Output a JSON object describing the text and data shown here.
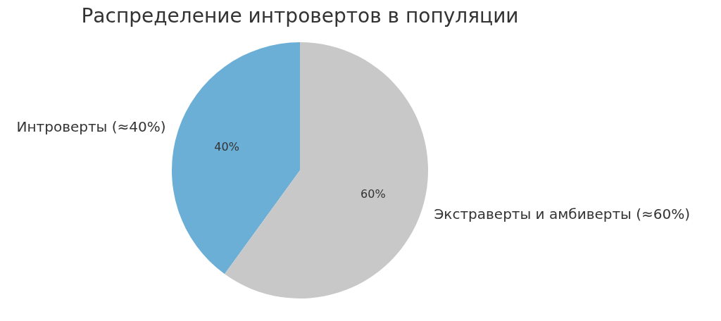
{
  "chart_data": {
    "type": "pie",
    "title": "Распределение интровертов в популяции",
    "categories": [
      "Интроверты (≈40%)",
      "Экстраверты и амбиверты (≈60%)"
    ],
    "values": [
      40,
      60
    ],
    "colors": [
      "#6baed6",
      "#c8c8c8"
    ],
    "value_labels": [
      "40%",
      "60%"
    ]
  }
}
